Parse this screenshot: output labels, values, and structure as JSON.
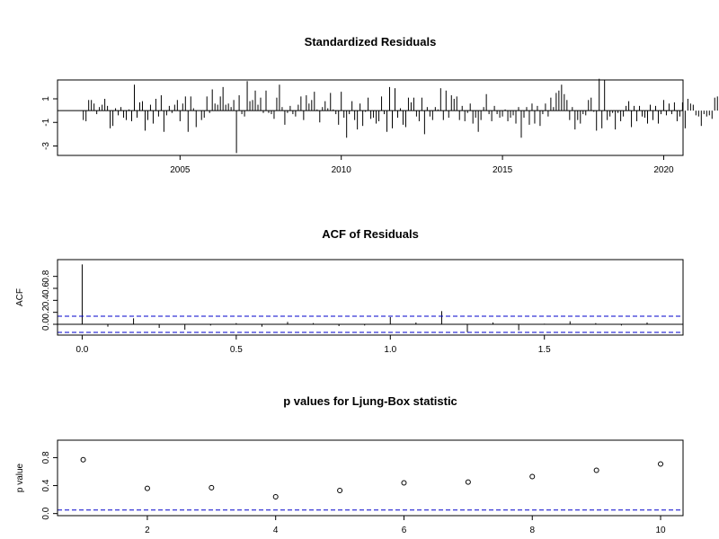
{
  "chart_data": [
    {
      "type": "bar",
      "title": "Standardized Residuals",
      "xlabel": "",
      "ylabel": "",
      "xlim": [
        2001.2,
        2020.6
      ],
      "ylim": [
        -3.8,
        2.6
      ],
      "xticks": [
        2005,
        2010,
        2015,
        2020
      ],
      "yticks": [
        -3,
        -1,
        1
      ],
      "grid": false,
      "x_start": 2002.0,
      "x_step": 0.08333,
      "values": [
        -0.8,
        -0.9,
        0.9,
        0.9,
        0.6,
        -0.3,
        0.3,
        0.5,
        1.0,
        0.4,
        -1.5,
        -1.3,
        0.2,
        -0.4,
        0.3,
        -0.6,
        -0.8,
        0.1,
        -0.9,
        2.2,
        -0.6,
        0.7,
        0.8,
        -1.7,
        -0.8,
        0.5,
        -1.1,
        1.0,
        -0.5,
        1.3,
        -1.8,
        -0.4,
        0.4,
        -0.2,
        0.5,
        0.9,
        -0.9,
        0.6,
        1.2,
        -1.8,
        1.2,
        0.2,
        -1.4,
        0.0,
        -0.8,
        -0.6,
        1.2,
        -0.2,
        1.8,
        0.6,
        0.5,
        1.2,
        2.0,
        0.5,
        0.6,
        0.3,
        0.9,
        -3.6,
        1.3,
        -0.3,
        -0.5,
        2.5,
        0.8,
        0.9,
        1.7,
        0.5,
        1.1,
        -0.2,
        1.7,
        -0.2,
        -0.3,
        -0.7,
        1.1,
        2.2,
        0.3,
        -1.2,
        -0.2,
        0.4,
        -0.3,
        -0.5,
        0.5,
        1.2,
        -0.8,
        1.3,
        0.6,
        0.9,
        1.6,
        0.1,
        -1.0,
        0.3,
        0.8,
        0.2,
        1.5,
        0.1,
        -0.3,
        -1.2,
        1.6,
        -0.6,
        -2.3,
        -0.3,
        0.8,
        -0.8,
        -1.6,
        0.6,
        -1.3,
        -0.1,
        1.1,
        -0.7,
        -0.6,
        -1.1,
        -0.9,
        1.2,
        -0.3,
        -1.8,
        2.0,
        -1.5,
        1.9,
        -0.6,
        0.2,
        -1.2,
        -1.4,
        1.1,
        0.7,
        1.1,
        -0.5,
        -0.9,
        1.1,
        -2.0,
        0.3,
        -0.5,
        -0.8,
        0.3,
        0.1,
        1.9,
        -0.8,
        1.7,
        -0.6,
        1.3,
        1.0,
        1.2,
        -0.8,
        0.4,
        -0.9,
        -0.2,
        0.6,
        -1.1,
        -0.6,
        -1.8,
        -0.8,
        0.3,
        1.4,
        -0.3,
        -0.9,
        0.4,
        -0.3,
        -0.6,
        -0.5,
        0.1,
        -0.9,
        -0.6,
        -0.4,
        -1.1,
        0.3,
        -2.3,
        -0.6,
        0.3,
        -1.2,
        0.6,
        -1.1,
        0.4,
        -1.3,
        -0.3,
        0.6,
        -0.5,
        1.1,
        0.3,
        1.5,
        1.7,
        2.2,
        1.4,
        0.9,
        -0.8,
        0.3,
        -1.6,
        -0.8,
        -1.1,
        -0.3,
        -0.4,
        0.9,
        1.1,
        -0.1,
        -1.7,
        2.7,
        -1.5,
        2.6,
        -0.8,
        -0.5,
        -0.2,
        -1.6,
        -0.2,
        -0.9,
        -0.5,
        0.4,
        0.8,
        -1.4,
        0.4,
        -0.9,
        0.4,
        -0.5,
        -0.6,
        -1.1,
        0.5,
        -0.8,
        0.4,
        -1.1,
        -0.3,
        0.9,
        -0.4,
        0.6,
        -0.3,
        0.7,
        -0.9,
        -0.5,
        0.7,
        -1.5,
        1.0,
        0.6,
        0.5,
        -0.4,
        -0.5,
        -1.3,
        -0.3,
        -0.5,
        -0.4,
        -0.7,
        1.1,
        1.2,
        -1.0,
        0.6,
        -0.5,
        2.0,
        -0.6,
        0.4,
        -0.9,
        0.6,
        -0.6,
        1.4,
        -0.4,
        -0.2,
        -0.3,
        -0.2,
        -1.3,
        -0.7,
        -0.6,
        0.6,
        0.4,
        0.8,
        -0.2,
        1.4,
        -1.1,
        0.4,
        -0.5,
        -1.2,
        0.9,
        -0.3,
        1.0,
        1.9,
        -0.8
      ]
    },
    {
      "type": "bar",
      "title": "ACF of Residuals",
      "xlabel": "",
      "ylabel": "ACF",
      "xlim": [
        -0.08,
        1.95
      ],
      "ylim": [
        -0.18,
        1.08
      ],
      "xticks": [
        0.0,
        0.5,
        1.0,
        1.5
      ],
      "xtick_labels": [
        "0.0",
        "0.5",
        "1.0",
        "1.5"
      ],
      "yticks": [
        0.0,
        0.2,
        0.4,
        0.6,
        0.8
      ],
      "ytick_labels": [
        "0.0",
        "0.2",
        "0.4",
        "0.6",
        "0.8"
      ],
      "grid": false,
      "confidence_bounds": [
        0.135,
        -0.135
      ],
      "x": [
        0.0,
        0.0833,
        0.1667,
        0.25,
        0.3333,
        0.4167,
        0.5,
        0.5833,
        0.6667,
        0.75,
        0.8333,
        0.9167,
        1.0,
        1.0833,
        1.1667,
        1.25,
        1.3333,
        1.4167,
        1.5,
        1.5833,
        1.6667,
        1.75,
        1.8333
      ],
      "values": [
        1.0,
        -0.04,
        0.1,
        -0.06,
        -0.09,
        -0.02,
        0.02,
        -0.04,
        0.04,
        0.02,
        -0.03,
        -0.02,
        0.12,
        0.03,
        0.22,
        -0.13,
        0.03,
        -0.1,
        0.01,
        0.05,
        0.02,
        -0.02,
        0.03
      ]
    },
    {
      "type": "scatter",
      "title": "p values for Ljung-Box statistic",
      "xlabel": "",
      "ylabel": "p value",
      "xlim": [
        0.6,
        10.35
      ],
      "ylim": [
        -0.03,
        1.05
      ],
      "xticks": [
        2,
        4,
        6,
        8,
        10
      ],
      "yticks": [
        0.0,
        0.4,
        0.8
      ],
      "ytick_labels": [
        "0.0",
        "0.4",
        "0.8"
      ],
      "grid": false,
      "significance_line": 0.05,
      "x": [
        1,
        2,
        3,
        4,
        5,
        6,
        7,
        8,
        9,
        10
      ],
      "values": [
        0.77,
        0.36,
        0.37,
        0.24,
        0.33,
        0.44,
        0.45,
        0.53,
        0.62,
        0.71
      ]
    }
  ]
}
